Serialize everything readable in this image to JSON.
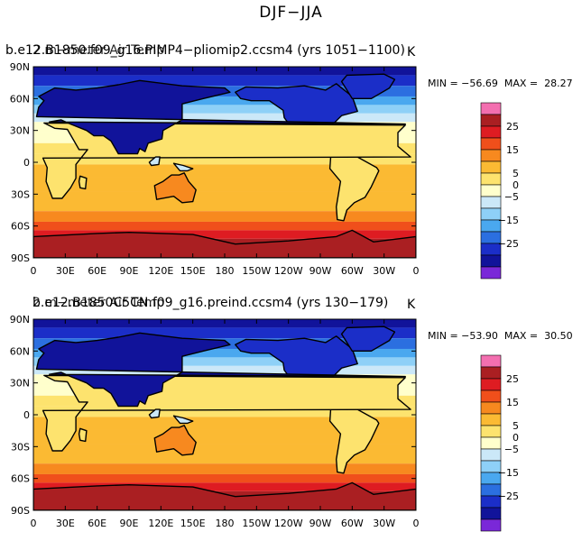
{
  "title": "DJF−JJA",
  "chart_data": [
    {
      "type": "heatmap",
      "title_left": "b.e12.B1850.f09_g16.PIMP4−pliomip2.ccsm4 (yrs 1051−1100)",
      "title_left_overlay": "2 m−meter Air Temp",
      "title_right": "K",
      "stats": "MIN = −56.69  MAX =  28.27",
      "min": -56.69,
      "max": 28.27,
      "x_ticks": [
        "0",
        "30E",
        "60E",
        "90E",
        "120E",
        "150E",
        "180",
        "150W",
        "120W",
        "90W",
        "60W",
        "30W",
        "0"
      ],
      "y_ticks": [
        "90N",
        "60N",
        "30N",
        "0",
        "30S",
        "60S",
        "90S"
      ],
      "xlim": [
        0,
        360
      ],
      "ylim": [
        -90,
        90
      ],
      "colorbar": {
        "levels": [
          30,
          25,
          20,
          15,
          10,
          5,
          0,
          -5,
          -10,
          -15,
          -20,
          -25,
          -30
        ],
        "labels": [
          "25",
          "15",
          "5",
          "0",
          "−5",
          "−15",
          "−25"
        ],
        "colors": [
          "#f36fb0",
          "#aa1f22",
          "#de1c22",
          "#f04f1b",
          "#f7891f",
          "#fbba33",
          "#fde36e",
          "#ffffcc",
          "#cbe8f8",
          "#8ed0f7",
          "#4aa8ef",
          "#2b6fe0",
          "#1b2ec8",
          "#11139a",
          "#7a28d8"
        ]
      }
    },
    {
      "type": "heatmap",
      "title_left": "b.e12.B1850C5CN.f09_g16.preind.ccsm4 (yrs 130−179)",
      "title_left_overlay": "2 m−meter Air Temp",
      "title_right": "K",
      "stats": "MIN = −53.90  MAX =  30.50",
      "min": -53.9,
      "max": 30.5,
      "x_ticks": [
        "0",
        "30E",
        "60E",
        "90E",
        "120E",
        "150E",
        "180",
        "150W",
        "120W",
        "90W",
        "60W",
        "30W",
        "0"
      ],
      "y_ticks": [
        "90N",
        "60N",
        "30N",
        "0",
        "30S",
        "60S",
        "90S"
      ],
      "xlim": [
        0,
        360
      ],
      "ylim": [
        -90,
        90
      ],
      "colorbar": {
        "levels": [
          30,
          25,
          20,
          15,
          10,
          5,
          0,
          -5,
          -10,
          -15,
          -20,
          -25,
          -30
        ],
        "labels": [
          "25",
          "15",
          "5",
          "0",
          "−5",
          "−15",
          "−25"
        ],
        "colors": [
          "#f36fb0",
          "#aa1f22",
          "#de1c22",
          "#f04f1b",
          "#f7891f",
          "#fbba33",
          "#fde36e",
          "#ffffcc",
          "#cbe8f8",
          "#8ed0f7",
          "#4aa8ef",
          "#2b6fe0",
          "#1b2ec8",
          "#11139a",
          "#7a28d8"
        ]
      }
    }
  ]
}
